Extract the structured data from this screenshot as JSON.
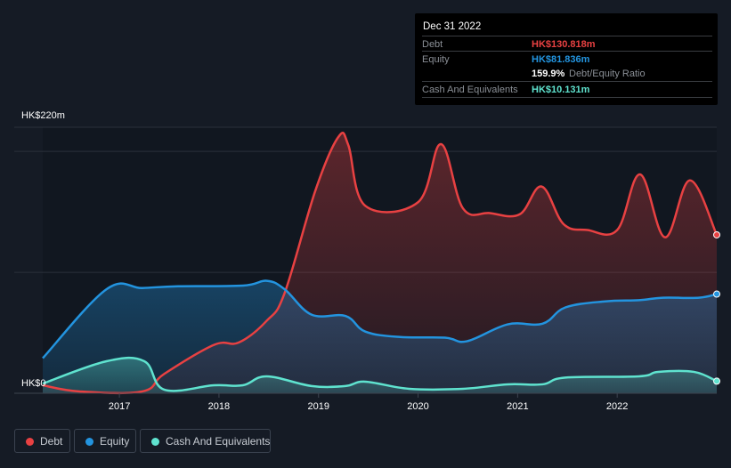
{
  "tooltip": {
    "date": "Dec 31 2022",
    "debt_label": "Debt",
    "debt_value": "HK$130.818m",
    "equity_label": "Equity",
    "equity_value": "HK$81.836m",
    "ratio_value": "159.9%",
    "ratio_label": "Debt/Equity Ratio",
    "cash_label": "Cash And Equivalents",
    "cash_value": "HK$10.131m"
  },
  "legend": [
    {
      "label": "Debt",
      "color": "#e84142"
    },
    {
      "label": "Equity",
      "color": "#2394df"
    },
    {
      "label": "Cash And Equivalents",
      "color": "#5fe3cf"
    }
  ],
  "chart_data": {
    "type": "area",
    "title": "",
    "xlabel": "",
    "ylabel": "",
    "ylim": [
      0,
      220
    ],
    "xlim": [
      2016.23,
      2023.0
    ],
    "y_tick_labels": [
      "HK$0",
      "HK$220m"
    ],
    "x_ticks": [
      2017,
      2018,
      2019,
      2020,
      2021,
      2022
    ],
    "x_tick_labels": [
      "2017",
      "2018",
      "2019",
      "2020",
      "2021",
      "2022"
    ],
    "gridlines": [
      100,
      200,
      220
    ],
    "legend_position": "bottom-left",
    "series": [
      {
        "name": "Debt",
        "color": "#e84142",
        "x": [
          2016.23,
          2016.6,
          2017.23,
          2017.45,
          2017.95,
          2018.2,
          2018.48,
          2018.66,
          2018.97,
          2019.2,
          2019.3,
          2019.47,
          2020.0,
          2020.23,
          2020.45,
          2020.72,
          2021.02,
          2021.24,
          2021.46,
          2021.7,
          2022.0,
          2022.23,
          2022.48,
          2022.73,
          2023.0
        ],
        "y": [
          6.6,
          1.5,
          1.5,
          16,
          40,
          42,
          60,
          83,
          168,
          212,
          205,
          155,
          158,
          206,
          153,
          149,
          148,
          171,
          140,
          135,
          135,
          181,
          129,
          176,
          131
        ]
      },
      {
        "name": "Equity",
        "color": "#2394df",
        "x": [
          2016.23,
          2016.87,
          2017.23,
          2017.59,
          2018.24,
          2018.48,
          2018.66,
          2018.93,
          2019.27,
          2019.47,
          2019.82,
          2020.27,
          2020.49,
          2020.9,
          2021.25,
          2021.48,
          2021.88,
          2022.22,
          2022.46,
          2022.82,
          2023.0
        ],
        "y": [
          29,
          86,
          87,
          88.5,
          89,
          93,
          86,
          65,
          64,
          51,
          46.5,
          46,
          43,
          57,
          57.5,
          71,
          76,
          77,
          79,
          79,
          82
        ]
      },
      {
        "name": "Cash And Equivalents",
        "color": "#5fe3cf",
        "x": [
          2016.23,
          2016.87,
          2017.25,
          2017.45,
          2017.95,
          2018.24,
          2018.48,
          2018.93,
          2019.27,
          2019.47,
          2019.91,
          2020.45,
          2020.9,
          2021.25,
          2021.48,
          2022.22,
          2022.41,
          2022.77,
          2023.0
        ],
        "y": [
          8,
          26.5,
          26.5,
          3,
          6.6,
          6.6,
          14,
          6,
          6,
          9.6,
          3.7,
          3.7,
          7.4,
          7.4,
          13,
          14,
          17.7,
          17.7,
          10
        ]
      }
    ]
  }
}
